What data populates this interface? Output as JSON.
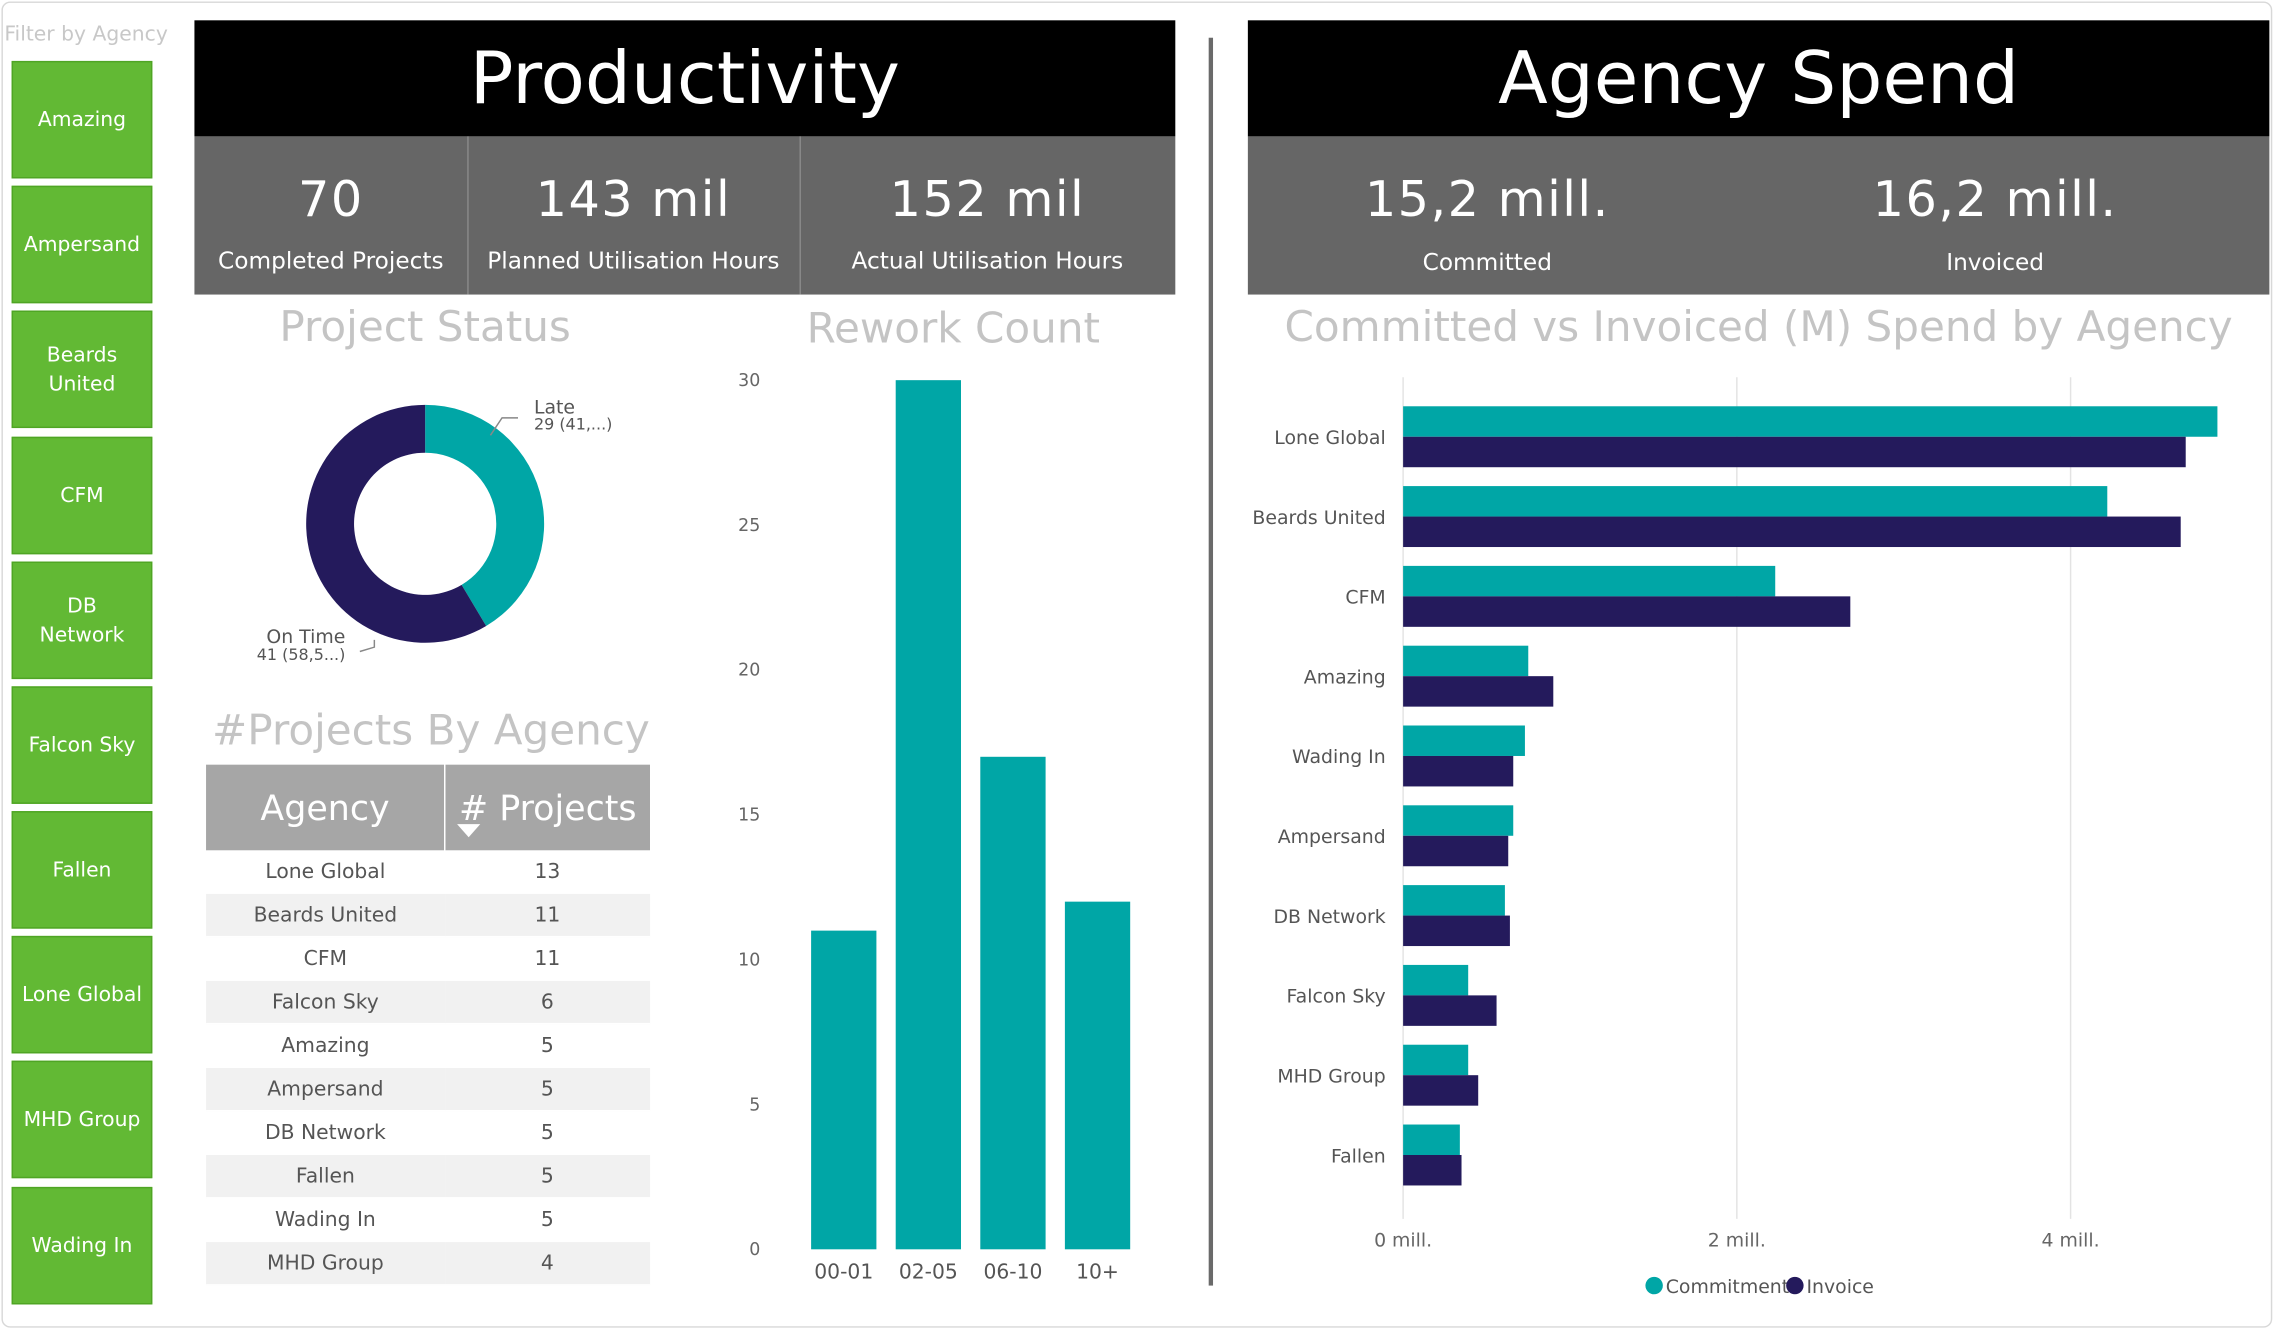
{
  "filter": {
    "label": "Filter by Agency",
    "items": [
      "Amazing",
      "Ampersand",
      "Beards United",
      "CFM",
      "DB Network",
      "Falcon Sky",
      "Fallen",
      "Lone Global",
      "MHD Group",
      "Wading In"
    ]
  },
  "productivity": {
    "title": "Productivity",
    "kpis": [
      {
        "value": "70",
        "label": "Completed Projects"
      },
      {
        "value": "143 mil",
        "label": "Planned Utilisation Hours"
      },
      {
        "value": "152 mil",
        "label": "Actual Utilisation Hours"
      }
    ]
  },
  "spend": {
    "title": "Agency Spend",
    "kpis": [
      {
        "value": "15,2 mill.",
        "label": "Committed"
      },
      {
        "value": "16,2 mill.",
        "label": "Invoiced"
      }
    ]
  },
  "colors": {
    "teal": "#00a6a6",
    "navy": "#241a5c",
    "slicer_green": "#62b934"
  },
  "chart_data": [
    {
      "type": "pie",
      "title": "Project Status",
      "categories": [
        "Late",
        "On Time"
      ],
      "values": [
        29,
        41
      ],
      "labels": [
        "29 (41,...)",
        "41 (58,5...)"
      ],
      "colors": [
        "#00a6a6",
        "#241a5c"
      ]
    },
    {
      "type": "bar",
      "title": "Rework Count",
      "categories": [
        "00-01",
        "02-05",
        "06-10",
        "10+"
      ],
      "values": [
        11,
        30,
        17,
        12
      ],
      "ylim": [
        0,
        30
      ],
      "yticks": [
        "0",
        "5",
        "10",
        "15",
        "20",
        "25",
        "30"
      ],
      "color": "#00a6a6"
    },
    {
      "type": "table",
      "title": "#Projects By Agency",
      "columns": [
        "Agency",
        "# Projects"
      ],
      "rows": [
        [
          "Lone Global",
          "13"
        ],
        [
          "Beards United",
          "11"
        ],
        [
          "CFM",
          "11"
        ],
        [
          "Falcon Sky",
          "6"
        ],
        [
          "Amazing",
          "5"
        ],
        [
          "Ampersand",
          "5"
        ],
        [
          "DB Network",
          "5"
        ],
        [
          "Fallen",
          "5"
        ],
        [
          "Wading In",
          "5"
        ],
        [
          "MHD Group",
          "4"
        ]
      ]
    },
    {
      "type": "bar",
      "orientation": "horizontal",
      "title": "Committed vs Invoiced (M) Spend by Agency",
      "categories": [
        "Lone Global",
        "Beards United",
        "CFM",
        "Amazing",
        "Wading In",
        "Ampersand",
        "DB Network",
        "Falcon Sky",
        "MHD Group",
        "Fallen"
      ],
      "series": [
        {
          "name": "Commitment",
          "color": "#00a6a6",
          "values": [
            4.88,
            4.22,
            2.23,
            0.75,
            0.73,
            0.66,
            0.61,
            0.39,
            0.39,
            0.34
          ]
        },
        {
          "name": "Invoice",
          "color": "#241a5c",
          "values": [
            4.69,
            4.66,
            2.68,
            0.9,
            0.66,
            0.63,
            0.64,
            0.56,
            0.45,
            0.35
          ]
        }
      ],
      "xlim": [
        0,
        5
      ],
      "xticks": [
        "0 mill.",
        "2 mill.",
        "4 mill."
      ],
      "xtick_values": [
        0,
        2,
        4
      ],
      "grid": true,
      "legend": "bottom"
    }
  ]
}
